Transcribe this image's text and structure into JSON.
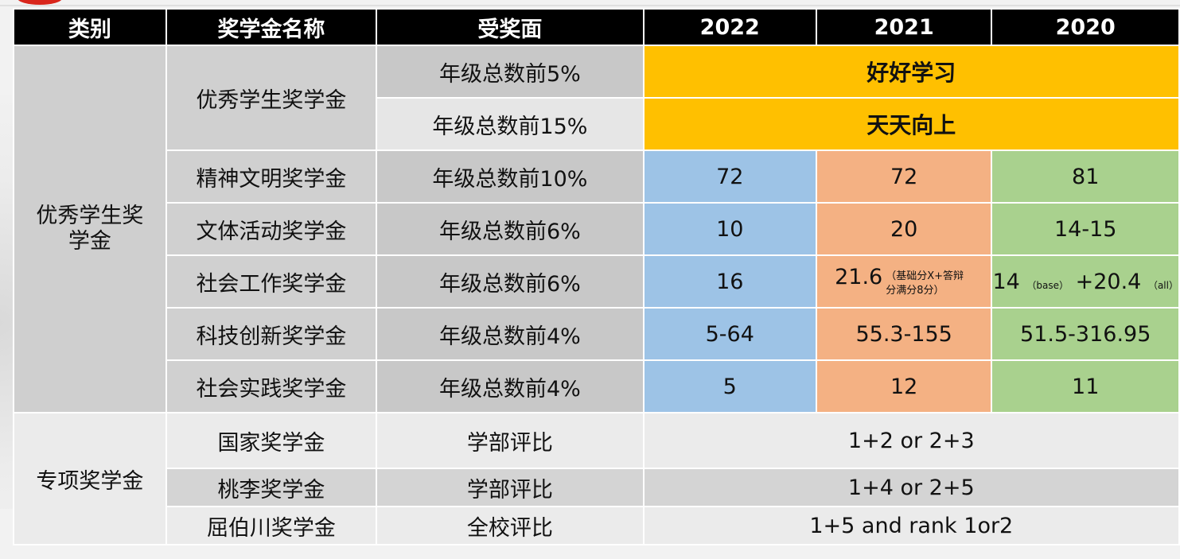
{
  "header": {
    "category": "类别",
    "name": "奖学金名称",
    "coverage": "受奖面",
    "y2022": "2022",
    "y2021": "2021",
    "y2020": "2020"
  },
  "group1": {
    "category": "优秀学生奖学金",
    "rows": [
      {
        "name": "优秀学生奖学金",
        "coverage": "年级总数前5%",
        "merged": "好好学习"
      },
      {
        "coverage": "年级总数前15%",
        "merged": "天天向上"
      },
      {
        "name": "精神文明奖学金",
        "coverage": "年级总数前10%",
        "v2022": "72",
        "v2021": "72",
        "v2020": "81"
      },
      {
        "name": "文体活动奖学金",
        "coverage": "年级总数前6%",
        "v2022": "10",
        "v2021": "20",
        "v2020": "14-15"
      },
      {
        "name": "社会工作奖学金",
        "coverage": "年级总数前6%",
        "v2022": "16",
        "v2021": "21.6",
        "v2021_note": "（基础分X+答辩分满分8分）",
        "v2020": "14",
        "v2020_note_a": "（base）",
        "v2020_b": "+20.4",
        "v2020_note_b": "（all）"
      },
      {
        "name": "科技创新奖学金",
        "coverage": "年级总数前4%",
        "v2022": "5-64",
        "v2021": "55.3-155",
        "v2020": "51.5-316.95"
      },
      {
        "name": "社会实践奖学金",
        "coverage": "年级总数前4%",
        "v2022": "5",
        "v2021": "12",
        "v2020": "11"
      }
    ]
  },
  "group2": {
    "category": "专项奖学金",
    "rows": [
      {
        "name": "国家奖学金",
        "coverage": "学部评比",
        "value": "1+2 or 2+3"
      },
      {
        "name": "桃李奖学金",
        "coverage": "学部评比",
        "value": "1+4 or 2+5"
      },
      {
        "name": "屈伯川奖学金",
        "coverage": "全校评比",
        "value": "1+5 and rank 1or2"
      }
    ]
  },
  "colors": {
    "header": "#000000",
    "gold": "#ffc000",
    "blue_2022": "#9dc3e6",
    "orange_2021": "#f4b183",
    "green_2020": "#a9d18e"
  }
}
